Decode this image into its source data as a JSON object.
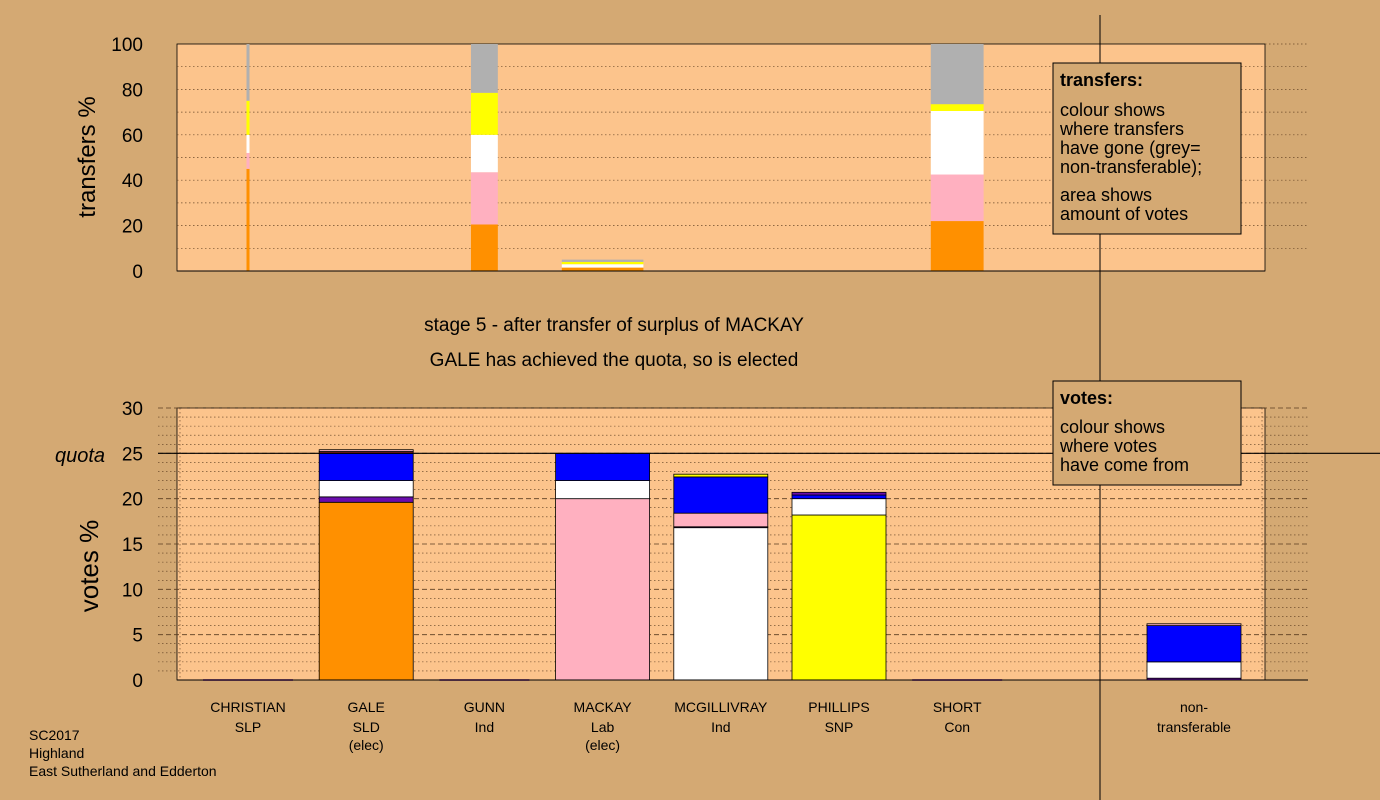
{
  "stage_caption": "stage 5 - after transfer of surplus of MACKAY",
  "elected_caption": "GALE has achieved the quota, so is elected",
  "footer": [
    "SC2017",
    "Highland",
    "East Sutherland and Edderton"
  ],
  "legend_transfers": {
    "title": "transfers:",
    "lines": [
      "colour shows",
      "where transfers",
      "have gone (grey=",
      "non-transferable);",
      "area shows",
      "amount of votes"
    ]
  },
  "legend_votes": {
    "title": "votes:",
    "lines": [
      "colour shows",
      "where votes",
      "have come from"
    ]
  },
  "colors": {
    "background": "#d4a973",
    "plot_bg": "#fcc48c",
    "CHRISTIAN": "#8b1a1a",
    "GALE": "#ff9000",
    "GUNN": "#6a0dad",
    "MACKAY": "#ffb0c0",
    "MCGILLIVRAY": "#ffffff",
    "PHILLIPS": "#ffff00",
    "SHORT": "#0000ff",
    "non-transferable": "#b0b0b0"
  },
  "chart_data": [
    {
      "type": "bar",
      "stacked": true,
      "ylabel": "transfers %",
      "ylim": [
        0,
        100
      ],
      "yticks": [
        0,
        20,
        40,
        60,
        80,
        100
      ],
      "categories": [
        "CHRISTIAN",
        "GALE",
        "GUNN",
        "MACKAY",
        "MCGILLIVRAY",
        "PHILLIPS",
        "SHORT",
        "non-transferable"
      ],
      "bars": [
        {
          "category": "CHRISTIAN",
          "width_share": 0.02,
          "segments": [
            {
              "to": "GALE",
              "value": 45
            },
            {
              "to": "MACKAY",
              "value": 7
            },
            {
              "to": "MCGILLIVRAY",
              "value": 8
            },
            {
              "to": "PHILLIPS",
              "value": 15
            },
            {
              "to": "non-transferable",
              "value": 25
            }
          ]
        },
        {
          "category": "GUNN",
          "width_share": 0.28,
          "segments": [
            {
              "to": "GALE",
              "value": 20.5
            },
            {
              "to": "MACKAY",
              "value": 23
            },
            {
              "to": "MCGILLIVRAY",
              "value": 16.5
            },
            {
              "to": "PHILLIPS",
              "value": 18.5
            },
            {
              "to": "non-transferable",
              "value": 21.5
            }
          ]
        },
        {
          "category": "MACKAY",
          "width_share": 0.85,
          "segments": [
            {
              "to": "GALE",
              "value": 1.5
            },
            {
              "to": "MCGILLIVRAY",
              "value": 1.5
            },
            {
              "to": "PHILLIPS",
              "value": 1
            },
            {
              "to": "non-transferable",
              "value": 1
            }
          ]
        },
        {
          "category": "SHORT",
          "width_share": 0.55,
          "segments": [
            {
              "to": "GALE",
              "value": 22
            },
            {
              "to": "MACKAY",
              "value": 20.5
            },
            {
              "to": "MCGILLIVRAY",
              "value": 28
            },
            {
              "to": "PHILLIPS",
              "value": 3
            },
            {
              "to": "non-transferable",
              "value": 26.5
            }
          ]
        }
      ]
    },
    {
      "type": "bar",
      "stacked": true,
      "ylabel": "votes %",
      "ylim": [
        0,
        30
      ],
      "yticks": [
        0,
        5,
        10,
        15,
        20,
        25,
        30
      ],
      "quota": 25,
      "quota_label": "quota",
      "candidates": [
        {
          "name": "CHRISTIAN",
          "party": "SLP",
          "note": "",
          "segments": []
        },
        {
          "name": "GALE",
          "party": "SLD",
          "note": "(elec)",
          "segments": [
            {
              "from": "GALE",
              "value": 19.6
            },
            {
              "from": "GUNN",
              "value": 0.6
            },
            {
              "from": "MCGILLIVRAY",
              "value": 1.8
            },
            {
              "from": "SHORT",
              "value": 3.0
            },
            {
              "from": "CHRISTIAN",
              "value": 0.2
            },
            {
              "from": "MACKAY",
              "value": 0.2
            }
          ]
        },
        {
          "name": "GUNN",
          "party": "Ind",
          "note": "",
          "segments": []
        },
        {
          "name": "MACKAY",
          "party": "Lab",
          "note": "(elec)",
          "segments": [
            {
              "from": "MACKAY",
              "value": 20.0
            },
            {
              "from": "MCGILLIVRAY",
              "value": 2.0
            },
            {
              "from": "SHORT",
              "value": 3.0
            }
          ]
        },
        {
          "name": "MCGILLIVRAY",
          "party": "Ind",
          "note": "",
          "segments": [
            {
              "from": "MCGILLIVRAY",
              "value": 16.8
            },
            {
              "from": "GUNN",
              "value": 0.1
            },
            {
              "from": "MACKAY",
              "value": 1.5
            },
            {
              "from": "SHORT",
              "value": 4.0
            },
            {
              "from": "PHILLIPS",
              "value": 0.3
            }
          ]
        },
        {
          "name": "PHILLIPS",
          "party": "SNP",
          "note": "",
          "segments": [
            {
              "from": "PHILLIPS",
              "value": 18.2
            },
            {
              "from": "MCGILLIVRAY",
              "value": 1.8
            },
            {
              "from": "SHORT",
              "value": 0.4
            },
            {
              "from": "GUNN",
              "value": 0.3
            }
          ]
        },
        {
          "name": "SHORT",
          "party": "Con",
          "note": "",
          "segments": []
        },
        {
          "name": "non-",
          "party": "transferable",
          "note": "",
          "segments": [
            {
              "from": "GUNN",
              "value": 0.2
            },
            {
              "from": "MCGILLIVRAY",
              "value": 1.8
            },
            {
              "from": "SHORT",
              "value": 4.0
            },
            {
              "from": "MACKAY",
              "value": 0.2
            }
          ]
        }
      ]
    }
  ]
}
